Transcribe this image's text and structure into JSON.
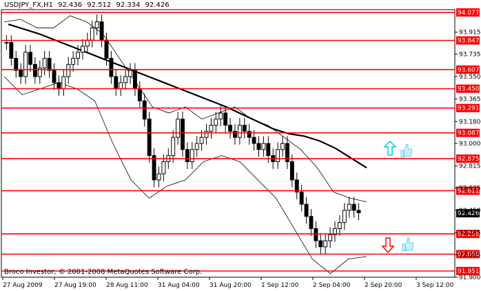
{
  "header": {
    "symbol": "USDJPY_FX,H1",
    "open": "92.436",
    "high": "92.512",
    "low": "92.334",
    "close": "92.426"
  },
  "copyright": "Broco Investor, © 2001-2008 MetaQuotes Software Corp.",
  "colors": {
    "background": "#ffffff",
    "level_line": "#ff0000",
    "price_series": "#000000",
    "arrow_up": "#00c8e6",
    "arrow_down": "#ff0000",
    "thumb_icon": "#66ccee",
    "current_price_box": "#000000"
  },
  "chart_data": {
    "type": "candlestick",
    "ylim": [
      91.9,
      94.1
    ],
    "y_ticks": [
      "93.915",
      "93.735",
      "93.550",
      "93.365",
      "93.180",
      "93.000",
      "92.815",
      "92.635",
      "92.450",
      "92.265",
      "92.085",
      "91.900"
    ],
    "x_labels": [
      "27 Aug 2009",
      "27 Aug 19:00",
      "28 Aug 11:00",
      "31 Aug 04:00",
      "31 Aug 20:00",
      "1 Sep 12:00",
      "2 Sep 04:00",
      "2 Sep 20:00",
      "3 Sep 12:00"
    ],
    "levels": [
      94.077,
      93.847,
      93.607,
      93.45,
      93.291,
      93.087,
      92.875,
      92.611,
      92.256,
      92.09,
      91.951
    ],
    "level_labels": [
      "94.077",
      "93.847",
      "93.607",
      "93.450",
      "93.291",
      "93.087",
      "92.875",
      "92.611",
      "92.256",
      "92.090",
      "91.951"
    ],
    "current_price": 92.426,
    "current_price_label": "92.426",
    "close_series": [
      93.83,
      93.7,
      93.6,
      93.55,
      93.75,
      93.65,
      93.55,
      93.62,
      93.7,
      93.6,
      93.5,
      93.45,
      93.55,
      93.65,
      93.7,
      93.75,
      93.8,
      93.85,
      93.95,
      94.0,
      93.85,
      93.7,
      93.55,
      93.45,
      93.5,
      93.55,
      93.6,
      93.45,
      93.35,
      93.2,
      92.9,
      92.7,
      92.75,
      92.85,
      92.9,
      93.05,
      93.2,
      92.95,
      92.85,
      92.95,
      93.0,
      93.05,
      93.1,
      93.15,
      93.2,
      93.25,
      93.15,
      93.1,
      93.05,
      93.15,
      93.1,
      93.05,
      93.0,
      92.95,
      93.0,
      92.9,
      92.85,
      92.95,
      93.0,
      92.85,
      92.7,
      92.6,
      92.5,
      92.4,
      92.3,
      92.2,
      92.15,
      92.2,
      92.25,
      92.3,
      92.35,
      92.45,
      92.5,
      92.45,
      92.43
    ],
    "ma_series": [
      93.98,
      93.94,
      93.9,
      93.85,
      93.8,
      93.75,
      93.7,
      93.65,
      93.6,
      93.55,
      93.5,
      93.45,
      93.4,
      93.35,
      93.3,
      93.24,
      93.18,
      93.12,
      93.08,
      93.06,
      93.02,
      92.96,
      92.88,
      92.8
    ],
    "upper_band": [
      94.0,
      94.02,
      93.95,
      93.95,
      94.05,
      94.0,
      93.9,
      93.7,
      93.5,
      93.3,
      93.25,
      93.3,
      93.2,
      93.25,
      93.3,
      93.2,
      93.15,
      93.05,
      92.95,
      92.8,
      92.6,
      92.55,
      92.52
    ],
    "lower_band": [
      93.55,
      93.4,
      93.45,
      93.5,
      93.45,
      93.35,
      93.0,
      92.7,
      92.55,
      92.65,
      92.7,
      92.85,
      92.9,
      92.85,
      92.7,
      92.55,
      92.3,
      92.05,
      91.93,
      92.05,
      92.07
    ]
  },
  "icons": {
    "signal_up": "arrow-up-icon",
    "signal_down": "arrow-down-icon",
    "thumb_up": "thumbs-up-icon"
  }
}
